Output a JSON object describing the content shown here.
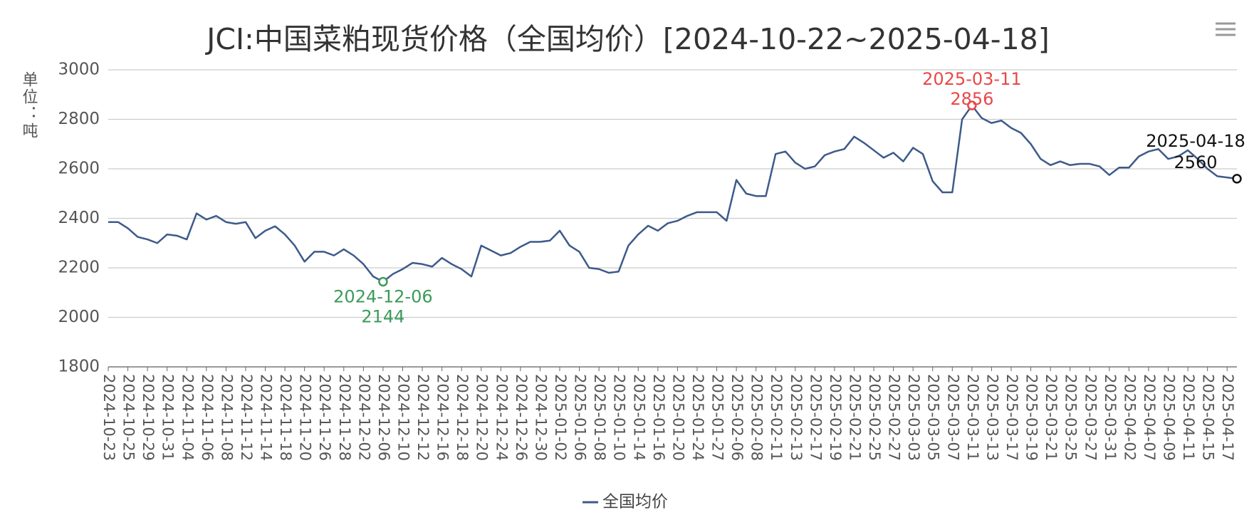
{
  "chart_data": {
    "type": "line",
    "title": "JCI:中国菜粕现货价格（全国均价）[2024-10-22~2025-04-18]",
    "y_label": "单位：吨",
    "ylim": [
      1800,
      3000
    ],
    "yticks": [
      1800,
      2000,
      2200,
      2400,
      2600,
      2800,
      3000
    ],
    "grid": true,
    "legend": "bottom",
    "categories": [
      "2024-10-23",
      null,
      "2024-10-25",
      null,
      "2024-10-29",
      null,
      "2024-10-31",
      null,
      "2024-11-04",
      null,
      "2024-11-06",
      null,
      "2024-11-08",
      null,
      "2024-11-12",
      null,
      "2024-11-14",
      null,
      "2024-11-18",
      null,
      "2024-11-20",
      null,
      "2024-11-26",
      null,
      "2024-11-28",
      null,
      "2024-12-02",
      null,
      "2024-12-06",
      null,
      "2024-12-10",
      null,
      "2024-12-12",
      null,
      "2024-12-16",
      null,
      "2024-12-18",
      null,
      "2024-12-20",
      null,
      "2024-12-24",
      null,
      "2024-12-26",
      null,
      "2024-12-30",
      null,
      "2025-01-02",
      null,
      "2025-01-06",
      null,
      "2025-01-08",
      null,
      "2025-01-10",
      null,
      "2025-01-14",
      null,
      "2025-01-16",
      null,
      "2025-01-20",
      null,
      "2025-01-24",
      null,
      "2025-01-27",
      null,
      "2025-02-06",
      null,
      "2025-02-08",
      null,
      "2025-02-11",
      null,
      "2025-02-13",
      null,
      "2025-02-17",
      null,
      "2025-02-19",
      null,
      "2025-02-21",
      null,
      "2025-02-25",
      null,
      "2025-02-27",
      null,
      "2025-03-03",
      null,
      "2025-03-05",
      null,
      "2025-03-07",
      null,
      "2025-03-11",
      null,
      "2025-03-13",
      null,
      "2025-03-17",
      null,
      "2025-03-19",
      null,
      "2025-03-21",
      null,
      "2025-03-25",
      null,
      "2025-03-27",
      null,
      "2025-03-31",
      null,
      "2025-04-02",
      null,
      "2025-04-07",
      null,
      "2025-04-09",
      null,
      "2025-04-11",
      null,
      "2025-04-15",
      null,
      "2025-04-17",
      null
    ],
    "series": [
      {
        "name": "全国均价",
        "color": "#3d5a8a",
        "values": [
          2385,
          2385,
          2360,
          2325,
          2315,
          2300,
          2335,
          2330,
          2315,
          2420,
          2395,
          2410,
          2385,
          2378,
          2385,
          2320,
          2350,
          2368,
          2335,
          2290,
          2225,
          2265,
          2265,
          2250,
          2275,
          2250,
          2215,
          2165,
          2144,
          2175,
          2195,
          2220,
          2215,
          2205,
          2240,
          2215,
          2195,
          2165,
          2290,
          2270,
          2250,
          2260,
          2285,
          2305,
          2305,
          2310,
          2350,
          2290,
          2265,
          2200,
          2195,
          2180,
          2185,
          2290,
          2335,
          2370,
          2350,
          2380,
          2390,
          2410,
          2425,
          2425,
          2425,
          2390,
          2555,
          2500,
          2490,
          2490,
          2660,
          2670,
          2625,
          2600,
          2610,
          2655,
          2670,
          2680,
          2730,
          2705,
          2675,
          2645,
          2665,
          2630,
          2685,
          2660,
          2550,
          2505,
          2505,
          2800,
          2856,
          2805,
          2785,
          2795,
          2765,
          2745,
          2700,
          2640,
          2615,
          2630,
          2615,
          2620,
          2620,
          2610,
          2575,
          2605,
          2605,
          2650,
          2670,
          2680,
          2640,
          2650,
          2675,
          2640,
          2600,
          2570,
          2565,
          2560
        ]
      }
    ],
    "annotations": [
      {
        "label": "2024-12-06",
        "value": 2144,
        "color": "#3c9a5a"
      },
      {
        "label": "2025-03-11",
        "value": 2856,
        "color": "#e84848"
      },
      {
        "label": "2025-04-18",
        "value": 2560,
        "color": "#111111"
      }
    ]
  }
}
